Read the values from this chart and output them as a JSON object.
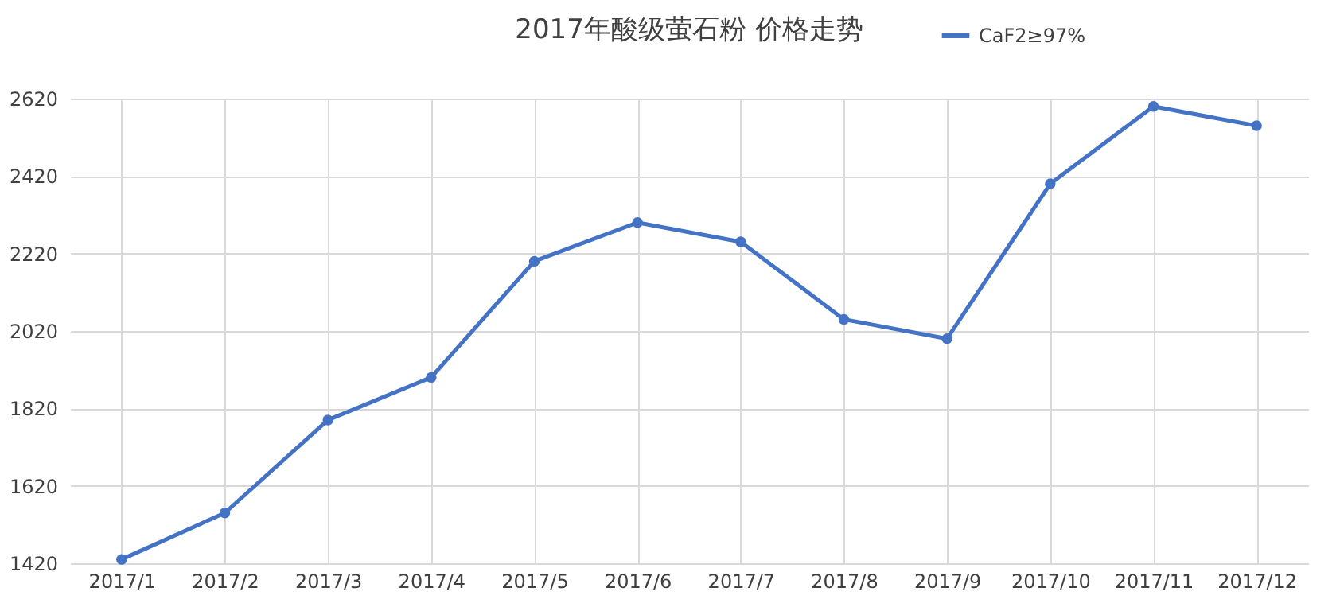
{
  "chart_data": {
    "type": "line",
    "title": "2017年酸级萤石粉 价格走势",
    "categories": [
      "2017/1",
      "2017/2",
      "2017/3",
      "2017/4",
      "2017/5",
      "2017/6",
      "2017/7",
      "2017/8",
      "2017/9",
      "2017/10",
      "2017/11",
      "2017/12"
    ],
    "series": [
      {
        "name": "CaF2≥97%",
        "color": "#4472c4",
        "values": [
          1430,
          1550,
          1790,
          1900,
          2200,
          2300,
          2250,
          2050,
          2000,
          2400,
          2600,
          2550
        ]
      }
    ],
    "ylim": [
      1420,
      2620
    ],
    "yticks": [
      1420,
      1620,
      1820,
      2020,
      2220,
      2420,
      2620
    ],
    "grid": true,
    "legend": "top right",
    "marker": "circle",
    "line_style": "solid"
  }
}
